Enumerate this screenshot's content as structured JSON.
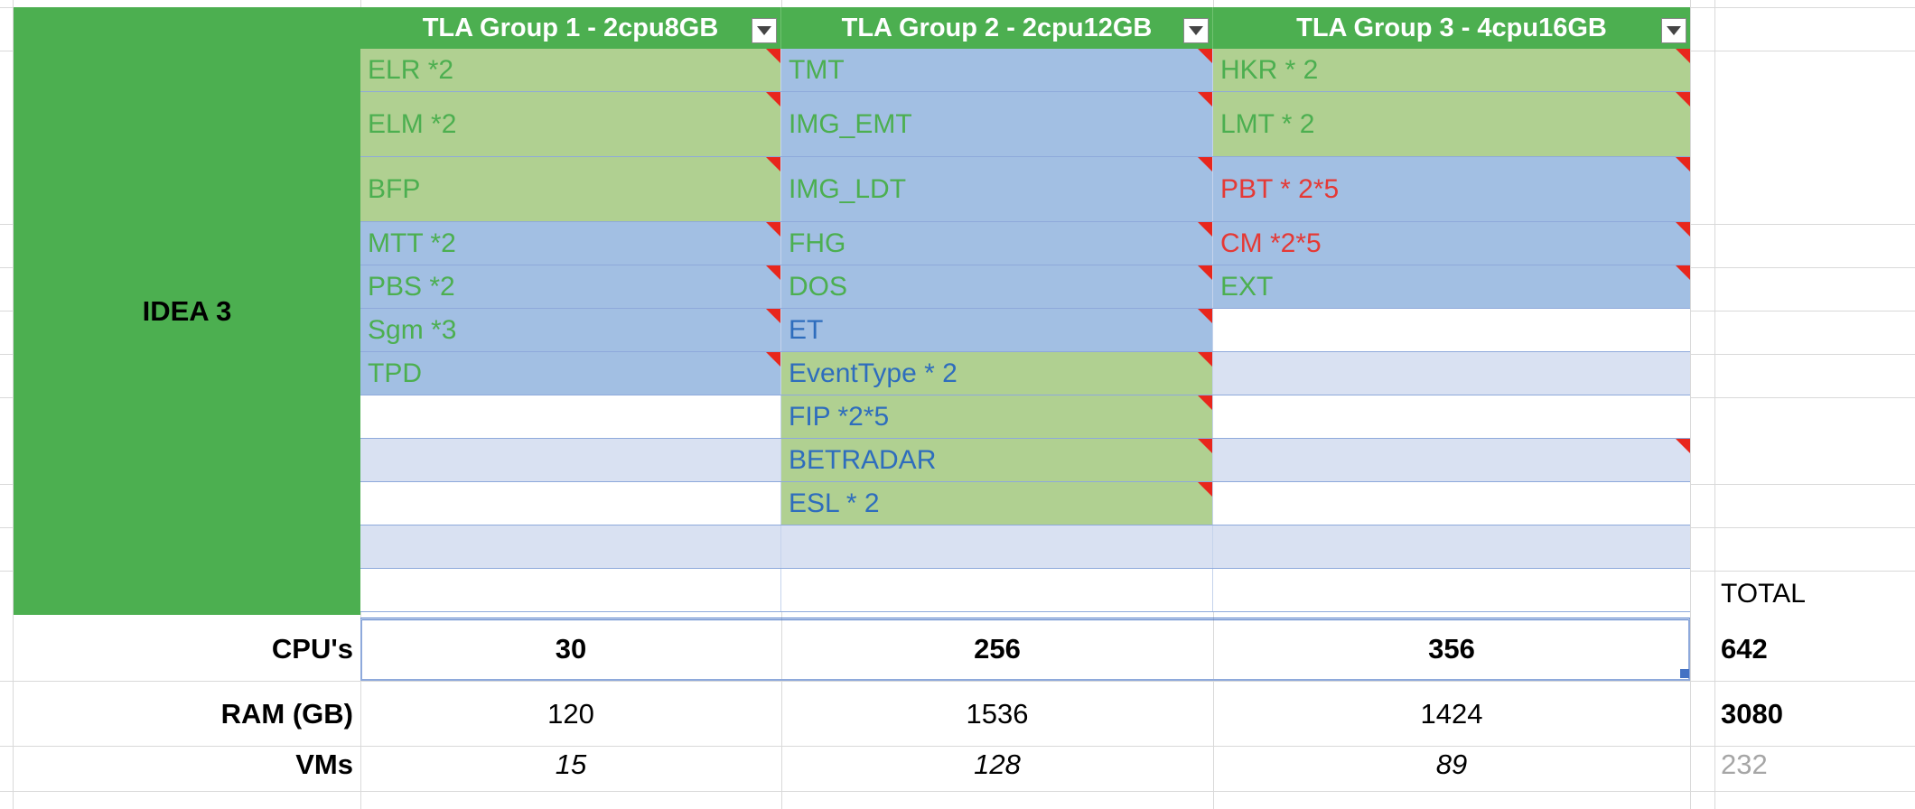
{
  "row_label": "IDEA 3",
  "columns": [
    {
      "title": "TLA Group 1 - 2cpu8GB"
    },
    {
      "title": "TLA Group 2 - 2cpu12GB"
    },
    {
      "title": "TLA Group 3 - 4cpu16GB"
    }
  ],
  "rows": [
    [
      {
        "text": "ELR  *2",
        "bg": "green",
        "color": "green",
        "comment": true
      },
      {
        "text": "TMT",
        "bg": "blue",
        "color": "green",
        "comment": true
      },
      {
        "text": "HKR * 2",
        "bg": "green",
        "color": "green",
        "comment": true
      }
    ],
    [
      {
        "text": "ELM *2",
        "bg": "green",
        "color": "green",
        "comment": true
      },
      {
        "text": "IMG_EMT",
        "bg": "blue",
        "color": "green",
        "comment": true
      },
      {
        "text": "LMT * 2",
        "bg": "green",
        "color": "green",
        "comment": true
      }
    ],
    [
      {
        "text": "BFP",
        "bg": "green",
        "color": "green",
        "comment": true
      },
      {
        "text": "IMG_LDT",
        "bg": "blue",
        "color": "green",
        "comment": true
      },
      {
        "text": "PBT * 2*5",
        "bg": "blue",
        "color": "red",
        "comment": true
      }
    ],
    [
      {
        "text": "MTT *2",
        "bg": "blue",
        "color": "green",
        "comment": true
      },
      {
        "text": "FHG",
        "bg": "blue",
        "color": "green",
        "comment": true
      },
      {
        "text": "CM *2*5",
        "bg": "blue",
        "color": "red",
        "comment": true
      }
    ],
    [
      {
        "text": "PBS *2",
        "bg": "blue",
        "color": "green",
        "comment": true
      },
      {
        "text": "DOS",
        "bg": "blue",
        "color": "green",
        "comment": true
      },
      {
        "text": "EXT",
        "bg": "blue",
        "color": "green",
        "comment": true
      }
    ],
    [
      {
        "text": "Sgm *3",
        "bg": "blue",
        "color": "green",
        "comment": true
      },
      {
        "text": "ET",
        "bg": "blue",
        "color": "blue",
        "comment": true
      },
      {
        "text": "",
        "bg": "white",
        "color": "green",
        "comment": false
      }
    ],
    [
      {
        "text": "TPD",
        "bg": "blue",
        "color": "green",
        "comment": true
      },
      {
        "text": "EventType * 2",
        "bg": "green",
        "color": "blue",
        "comment": true
      },
      {
        "text": "",
        "bg": "stripe",
        "color": "green",
        "comment": false
      }
    ],
    [
      {
        "text": "",
        "bg": "white",
        "color": "green",
        "comment": false
      },
      {
        "text": "FIP *2*5",
        "bg": "green",
        "color": "blue",
        "comment": true
      },
      {
        "text": "",
        "bg": "white",
        "color": "green",
        "comment": false
      }
    ],
    [
      {
        "text": "",
        "bg": "stripe",
        "color": "green",
        "comment": false
      },
      {
        "text": "BETRADAR",
        "bg": "green",
        "color": "blue",
        "comment": true
      },
      {
        "text": "",
        "bg": "stripe",
        "color": "green",
        "comment": true
      }
    ],
    [
      {
        "text": "",
        "bg": "white",
        "color": "green",
        "comment": false
      },
      {
        "text": "ESL * 2",
        "bg": "green",
        "color": "blue",
        "comment": true
      },
      {
        "text": "",
        "bg": "white",
        "color": "green",
        "comment": false
      }
    ],
    [
      {
        "text": "",
        "bg": "stripe",
        "color": "green",
        "comment": false
      },
      {
        "text": "",
        "bg": "stripe",
        "color": "green",
        "comment": false
      },
      {
        "text": "",
        "bg": "stripe",
        "color": "green",
        "comment": false
      }
    ],
    [
      {
        "text": "",
        "bg": "white",
        "color": "green",
        "comment": false
      },
      {
        "text": "",
        "bg": "white",
        "color": "green",
        "comment": false
      },
      {
        "text": "",
        "bg": "white",
        "color": "green",
        "comment": false
      }
    ]
  ],
  "total_label": "TOTAL",
  "summary": {
    "cpu": {
      "label": "CPU's",
      "values": [
        "30",
        "256",
        "356"
      ],
      "total": "642"
    },
    "ram": {
      "label": "RAM (GB)",
      "values": [
        "120",
        "1536",
        "1424"
      ],
      "total": "3080"
    },
    "vms": {
      "label": "VMs",
      "values": [
        "15",
        "128",
        "89"
      ],
      "total": "232"
    }
  },
  "colors": {
    "header_green": "#4caf50",
    "cell_green": "#b0d091",
    "cell_blue": "#a2bfe3",
    "stripe": "#d9e1f2",
    "text_red": "#e53935",
    "text_blue": "#2e6dbd",
    "comment_red": "#e8261c"
  }
}
